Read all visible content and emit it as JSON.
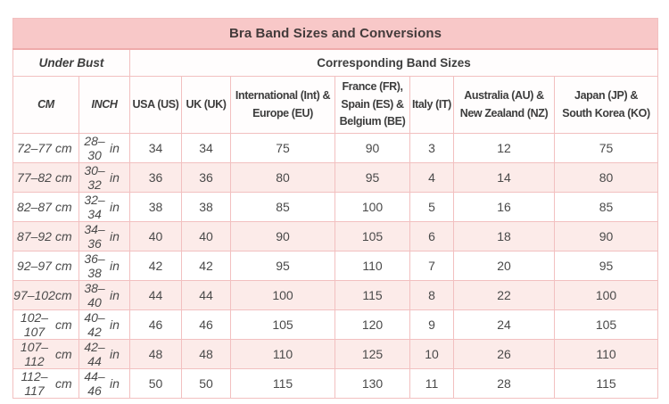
{
  "title": "Bra Band Sizes and Conversions",
  "table": {
    "group_headers": {
      "under_bust": "Under Bust",
      "corresponding": "Corresponding Band Sizes"
    },
    "columns": [
      "CM",
      "INCH",
      "USA (US)",
      "UK (UK)",
      "International (Int) &\nEurope (EU)",
      "France (FR),\nSpain (ES) &\nBelgium (BE)",
      "Italy (IT)",
      "Australia (AU) &\nNew Zealand (NZ)",
      "Japan (JP) &\nSouth Korea (KO)"
    ],
    "units": {
      "cm": "cm",
      "inch": "in"
    },
    "rows": [
      [
        "72–77",
        "28–30",
        "34",
        "34",
        "75",
        "90",
        "3",
        "12",
        "75"
      ],
      [
        "77–82",
        "30–32",
        "36",
        "36",
        "80",
        "95",
        "4",
        "14",
        "80"
      ],
      [
        "82–87",
        "32–34",
        "38",
        "38",
        "85",
        "100",
        "5",
        "16",
        "85"
      ],
      [
        "87–92",
        "34–36",
        "40",
        "40",
        "90",
        "105",
        "6",
        "18",
        "90"
      ],
      [
        "92–97",
        "36–38",
        "42",
        "42",
        "95",
        "110",
        "7",
        "20",
        "95"
      ],
      [
        "97–102",
        "38–40",
        "44",
        "44",
        "100",
        "115",
        "8",
        "22",
        "100"
      ],
      [
        "102–107",
        "40–42",
        "46",
        "46",
        "105",
        "120",
        "9",
        "24",
        "105"
      ],
      [
        "107–112",
        "42–44",
        "48",
        "48",
        "110",
        "125",
        "10",
        "26",
        "110"
      ],
      [
        "112–117",
        "44–46",
        "50",
        "50",
        "115",
        "130",
        "11",
        "28",
        "115"
      ]
    ]
  },
  "colors": {
    "title_bg": "#f8c8c8",
    "title_border": "#efaaaa",
    "row_alt_bg": "#fcebe9",
    "border": "#f2c0c0",
    "header_text": "#3d3d3d",
    "data_text": "#4a4a4a",
    "title_text": "#433b3b"
  }
}
